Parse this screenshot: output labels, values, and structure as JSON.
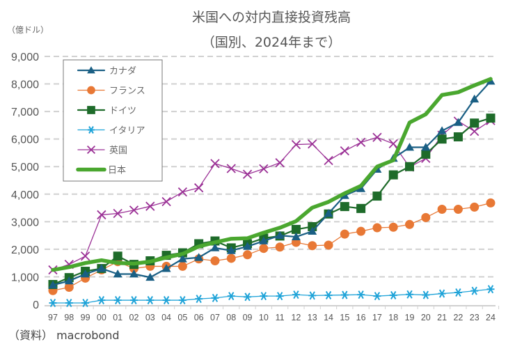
{
  "chart_data": {
    "type": "line",
    "title": "米国への対内直接投資残高",
    "subtitle": "（国別、2024年まで）",
    "ylabel": "（億ドル）",
    "xlabel": "",
    "source": "（資料） macrobond",
    "ylim": [
      0,
      9000
    ],
    "yticks": [
      0,
      1000,
      2000,
      3000,
      4000,
      5000,
      6000,
      7000,
      8000,
      9000
    ],
    "ytick_labels": [
      "0",
      "1,000",
      "2,000",
      "3,000",
      "4,000",
      "5,000",
      "6,000",
      "7,000",
      "8,000",
      "9,000"
    ],
    "grid": true,
    "legend_position": "top-left",
    "categories": [
      "97",
      "98",
      "99",
      "00",
      "01",
      "02",
      "03",
      "04",
      "05",
      "06",
      "07",
      "08",
      "09",
      "10",
      "11",
      "12",
      "13",
      "14",
      "15",
      "16",
      "17",
      "18",
      "19",
      "20",
      "21",
      "22",
      "23",
      "24"
    ],
    "series": [
      {
        "name": "カナダ",
        "color": "#1a5f84",
        "marker": "triangle",
        "width": "medium",
        "values": [
          700,
          850,
          1100,
          1300,
          1100,
          1100,
          980,
          1300,
          1650,
          1700,
          2050,
          1950,
          2100,
          2300,
          2500,
          2450,
          2650,
          3300,
          3950,
          4200,
          4900,
          5300,
          5700,
          5700,
          6300,
          6600,
          7450,
          8100
        ]
      },
      {
        "name": "フランス",
        "color": "#e87835",
        "marker": "circle",
        "width": "thin",
        "values": [
          500,
          620,
          950,
          1250,
          1550,
          1300,
          1380,
          1380,
          1380,
          1650,
          1580,
          1670,
          1800,
          2030,
          2080,
          2250,
          2130,
          2150,
          2550,
          2650,
          2780,
          2800,
          2900,
          3150,
          3450,
          3450,
          3530,
          3680
        ]
      },
      {
        "name": "ドイツ",
        "color": "#1e6b2a",
        "marker": "square",
        "width": "medium",
        "values": [
          720,
          970,
          1200,
          1300,
          1750,
          1450,
          1580,
          1780,
          1870,
          2200,
          2300,
          2050,
          2200,
          2400,
          2480,
          2720,
          2820,
          3280,
          3550,
          3480,
          3930,
          4700,
          5000,
          5450,
          6000,
          6080,
          6580,
          6760
        ]
      },
      {
        "name": "イタリア",
        "color": "#1fa3d8",
        "marker": "asterisk",
        "width": "thin",
        "values": [
          50,
          50,
          50,
          150,
          150,
          150,
          150,
          150,
          150,
          200,
          230,
          300,
          270,
          300,
          300,
          350,
          320,
          330,
          340,
          350,
          300,
          330,
          360,
          340,
          390,
          430,
          490,
          550
        ]
      },
      {
        "name": "英国",
        "color": "#9b3196",
        "marker": "x",
        "width": "thin",
        "values": [
          1250,
          1450,
          1750,
          3250,
          3300,
          3420,
          3560,
          3730,
          4080,
          4230,
          5110,
          4930,
          4720,
          4920,
          5140,
          5800,
          5820,
          5220,
          5570,
          5880,
          6060,
          5830,
          4980,
          5300,
          6140,
          6650,
          6280,
          6670
        ]
      },
      {
        "name": "日本",
        "color": "#4aa72f",
        "marker": "none",
        "width": "thick",
        "values": [
          1250,
          1350,
          1500,
          1600,
          1500,
          1480,
          1550,
          1700,
          1830,
          2100,
          2250,
          2380,
          2400,
          2600,
          2780,
          3020,
          3510,
          3720,
          4030,
          4300,
          5000,
          5230,
          6600,
          6900,
          7600,
          7700,
          7950,
          8180
        ]
      }
    ]
  }
}
